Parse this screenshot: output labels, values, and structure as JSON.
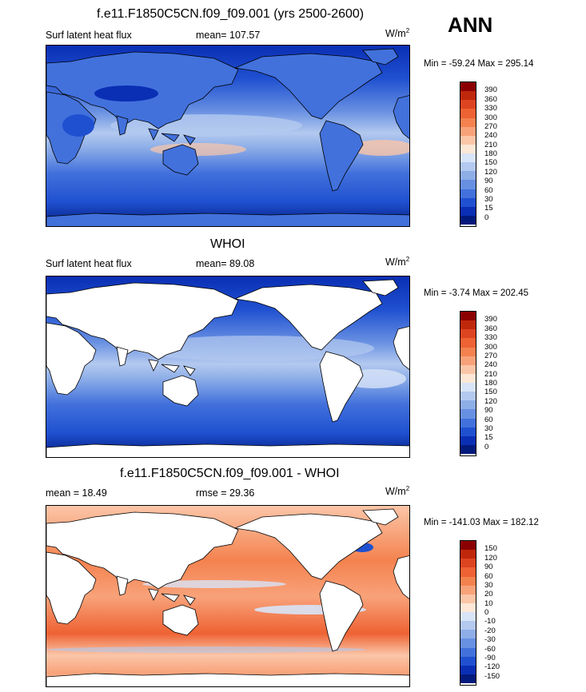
{
  "season": "ANN",
  "panels": [
    {
      "id": "model",
      "title": "f.e11.F1850C5CN.f09_f09.001 (yrs 2500-2600)",
      "left_label": "Surf latent heat flux",
      "stat_label": "mean= 107.57",
      "units": "W/m",
      "units_sup": "2",
      "minmax": "Min = -59.24 Max = 295.14",
      "scale": "abs",
      "ocean_only": false
    },
    {
      "id": "obs",
      "title": "WHOI",
      "left_label": "Surf latent heat flux",
      "stat_label": "mean=  89.08",
      "units": "W/m",
      "units_sup": "2",
      "minmax": "Min =  -3.74 Max = 202.45",
      "scale": "abs",
      "ocean_only": true
    },
    {
      "id": "diff",
      "title": "f.e11.F1850C5CN.f09_f09.001 - WHOI",
      "left_label": "mean =  18.49",
      "stat_label": "rmse =  29.36",
      "units": "W/m",
      "units_sup": "2",
      "minmax": "Min = -141.03 Max = 182.12",
      "scale": "diff",
      "ocean_only": true
    }
  ],
  "colorbars": {
    "abs": {
      "labels": [
        "390",
        "360",
        "330",
        "300",
        "270",
        "240",
        "210",
        "180",
        "150",
        "120",
        "90",
        "60",
        "30",
        "15",
        "0"
      ],
      "colors": [
        "#8b0000",
        "#c0280c",
        "#dd4420",
        "#ee6233",
        "#f4824f",
        "#f8a27a",
        "#fbc6a8",
        "#fde7d6",
        "#d8e4f7",
        "#b3c9ef",
        "#8eaee8",
        "#6890e2",
        "#4271dc",
        "#1f50d0",
        "#0a2fb4",
        "#021a7c"
      ]
    },
    "diff": {
      "labels": [
        "150",
        "120",
        "90",
        "60",
        "30",
        "20",
        "10",
        "0",
        "-10",
        "-20",
        "-30",
        "-60",
        "-90",
        "-120",
        "-150"
      ],
      "colors": [
        "#8b0000",
        "#c0280c",
        "#dd4420",
        "#ee6233",
        "#f4824f",
        "#f8a27a",
        "#fbc6a8",
        "#fde7d6",
        "#d8e4f7",
        "#b3c9ef",
        "#8eaee8",
        "#6890e2",
        "#4271dc",
        "#1f50d0",
        "#0a2fb4",
        "#021a7c"
      ]
    }
  }
}
